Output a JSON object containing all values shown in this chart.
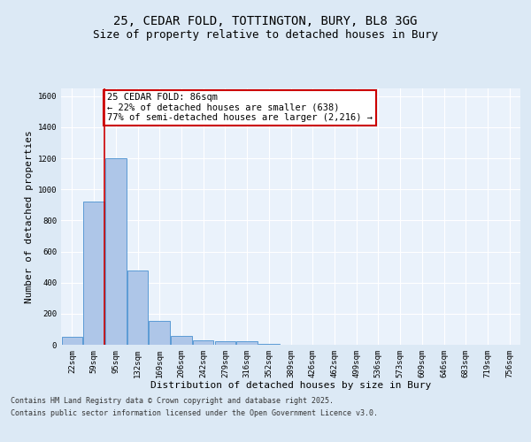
{
  "title_line1": "25, CEDAR FOLD, TOTTINGTON, BURY, BL8 3GG",
  "title_line2": "Size of property relative to detached houses in Bury",
  "xlabel": "Distribution of detached houses by size in Bury",
  "ylabel": "Number of detached properties",
  "bins": [
    "22sqm",
    "59sqm",
    "95sqm",
    "132sqm",
    "169sqm",
    "206sqm",
    "242sqm",
    "279sqm",
    "316sqm",
    "352sqm",
    "389sqm",
    "426sqm",
    "462sqm",
    "499sqm",
    "536sqm",
    "573sqm",
    "609sqm",
    "646sqm",
    "683sqm",
    "719sqm",
    "756sqm"
  ],
  "values": [
    50,
    920,
    1200,
    480,
    155,
    55,
    30,
    20,
    20,
    5,
    0,
    0,
    0,
    0,
    0,
    0,
    0,
    0,
    0,
    0,
    0
  ],
  "bar_color": "#aec6e8",
  "bar_edge_color": "#5b9bd5",
  "redline_x": 1.5,
  "redline_color": "#cc0000",
  "annotation_text": "25 CEDAR FOLD: 86sqm\n← 22% of detached houses are smaller (638)\n77% of semi-detached houses are larger (2,216) →",
  "annotation_box_color": "#ffffff",
  "annotation_border_color": "#cc0000",
  "ylim": [
    0,
    1650
  ],
  "yticks": [
    0,
    200,
    400,
    600,
    800,
    1000,
    1200,
    1400,
    1600
  ],
  "footer_line1": "Contains HM Land Registry data © Crown copyright and database right 2025.",
  "footer_line2": "Contains public sector information licensed under the Open Government Licence v3.0.",
  "bg_color": "#dce9f5",
  "plot_bg_color": "#eaf2fb",
  "grid_color": "#ffffff",
  "title_fontsize": 10,
  "subtitle_fontsize": 9,
  "axis_label_fontsize": 8,
  "tick_fontsize": 6.5,
  "annotation_fontsize": 7.5,
  "footer_fontsize": 6
}
